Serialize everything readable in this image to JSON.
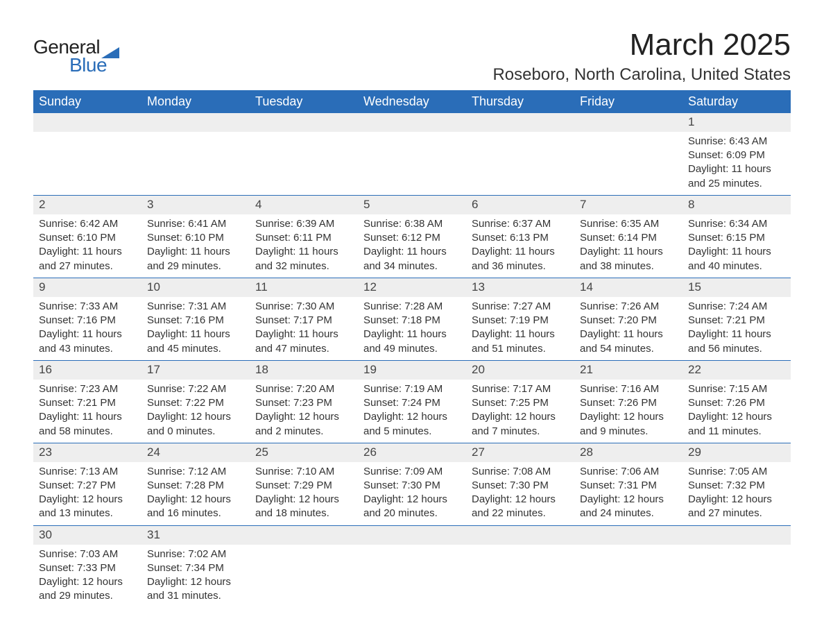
{
  "logo": {
    "text_general": "General",
    "text_blue": "Blue",
    "sail_color": "#2a6db8"
  },
  "title": "March 2025",
  "location": "Roseboro, North Carolina, United States",
  "colors": {
    "header_bg": "#2a6db8",
    "header_text": "#ffffff",
    "daynum_bg": "#eeeeee",
    "row_border": "#2a6db8",
    "body_text": "#333333",
    "page_bg": "#ffffff"
  },
  "typography": {
    "title_fontsize": 44,
    "location_fontsize": 24,
    "dayheader_fontsize": 18,
    "cell_fontsize": 15,
    "daynum_fontsize": 17,
    "logo_fontsize": 28,
    "font_family": "Arial"
  },
  "day_headers": [
    "Sunday",
    "Monday",
    "Tuesday",
    "Wednesday",
    "Thursday",
    "Friday",
    "Saturday"
  ],
  "labels": {
    "sunrise": "Sunrise:",
    "sunset": "Sunset:",
    "daylight": "Daylight:"
  },
  "weeks": [
    [
      null,
      null,
      null,
      null,
      null,
      null,
      {
        "n": "1",
        "sr": "6:43 AM",
        "ss": "6:09 PM",
        "dl": "11 hours and 25 minutes."
      }
    ],
    [
      {
        "n": "2",
        "sr": "6:42 AM",
        "ss": "6:10 PM",
        "dl": "11 hours and 27 minutes."
      },
      {
        "n": "3",
        "sr": "6:41 AM",
        "ss": "6:10 PM",
        "dl": "11 hours and 29 minutes."
      },
      {
        "n": "4",
        "sr": "6:39 AM",
        "ss": "6:11 PM",
        "dl": "11 hours and 32 minutes."
      },
      {
        "n": "5",
        "sr": "6:38 AM",
        "ss": "6:12 PM",
        "dl": "11 hours and 34 minutes."
      },
      {
        "n": "6",
        "sr": "6:37 AM",
        "ss": "6:13 PM",
        "dl": "11 hours and 36 minutes."
      },
      {
        "n": "7",
        "sr": "6:35 AM",
        "ss": "6:14 PM",
        "dl": "11 hours and 38 minutes."
      },
      {
        "n": "8",
        "sr": "6:34 AM",
        "ss": "6:15 PM",
        "dl": "11 hours and 40 minutes."
      }
    ],
    [
      {
        "n": "9",
        "sr": "7:33 AM",
        "ss": "7:16 PM",
        "dl": "11 hours and 43 minutes."
      },
      {
        "n": "10",
        "sr": "7:31 AM",
        "ss": "7:16 PM",
        "dl": "11 hours and 45 minutes."
      },
      {
        "n": "11",
        "sr": "7:30 AM",
        "ss": "7:17 PM",
        "dl": "11 hours and 47 minutes."
      },
      {
        "n": "12",
        "sr": "7:28 AM",
        "ss": "7:18 PM",
        "dl": "11 hours and 49 minutes."
      },
      {
        "n": "13",
        "sr": "7:27 AM",
        "ss": "7:19 PM",
        "dl": "11 hours and 51 minutes."
      },
      {
        "n": "14",
        "sr": "7:26 AM",
        "ss": "7:20 PM",
        "dl": "11 hours and 54 minutes."
      },
      {
        "n": "15",
        "sr": "7:24 AM",
        "ss": "7:21 PM",
        "dl": "11 hours and 56 minutes."
      }
    ],
    [
      {
        "n": "16",
        "sr": "7:23 AM",
        "ss": "7:21 PM",
        "dl": "11 hours and 58 minutes."
      },
      {
        "n": "17",
        "sr": "7:22 AM",
        "ss": "7:22 PM",
        "dl": "12 hours and 0 minutes."
      },
      {
        "n": "18",
        "sr": "7:20 AM",
        "ss": "7:23 PM",
        "dl": "12 hours and 2 minutes."
      },
      {
        "n": "19",
        "sr": "7:19 AM",
        "ss": "7:24 PM",
        "dl": "12 hours and 5 minutes."
      },
      {
        "n": "20",
        "sr": "7:17 AM",
        "ss": "7:25 PM",
        "dl": "12 hours and 7 minutes."
      },
      {
        "n": "21",
        "sr": "7:16 AM",
        "ss": "7:26 PM",
        "dl": "12 hours and 9 minutes."
      },
      {
        "n": "22",
        "sr": "7:15 AM",
        "ss": "7:26 PM",
        "dl": "12 hours and 11 minutes."
      }
    ],
    [
      {
        "n": "23",
        "sr": "7:13 AM",
        "ss": "7:27 PM",
        "dl": "12 hours and 13 minutes."
      },
      {
        "n": "24",
        "sr": "7:12 AM",
        "ss": "7:28 PM",
        "dl": "12 hours and 16 minutes."
      },
      {
        "n": "25",
        "sr": "7:10 AM",
        "ss": "7:29 PM",
        "dl": "12 hours and 18 minutes."
      },
      {
        "n": "26",
        "sr": "7:09 AM",
        "ss": "7:30 PM",
        "dl": "12 hours and 20 minutes."
      },
      {
        "n": "27",
        "sr": "7:08 AM",
        "ss": "7:30 PM",
        "dl": "12 hours and 22 minutes."
      },
      {
        "n": "28",
        "sr": "7:06 AM",
        "ss": "7:31 PM",
        "dl": "12 hours and 24 minutes."
      },
      {
        "n": "29",
        "sr": "7:05 AM",
        "ss": "7:32 PM",
        "dl": "12 hours and 27 minutes."
      }
    ],
    [
      {
        "n": "30",
        "sr": "7:03 AM",
        "ss": "7:33 PM",
        "dl": "12 hours and 29 minutes."
      },
      {
        "n": "31",
        "sr": "7:02 AM",
        "ss": "7:34 PM",
        "dl": "12 hours and 31 minutes."
      },
      null,
      null,
      null,
      null,
      null
    ]
  ]
}
